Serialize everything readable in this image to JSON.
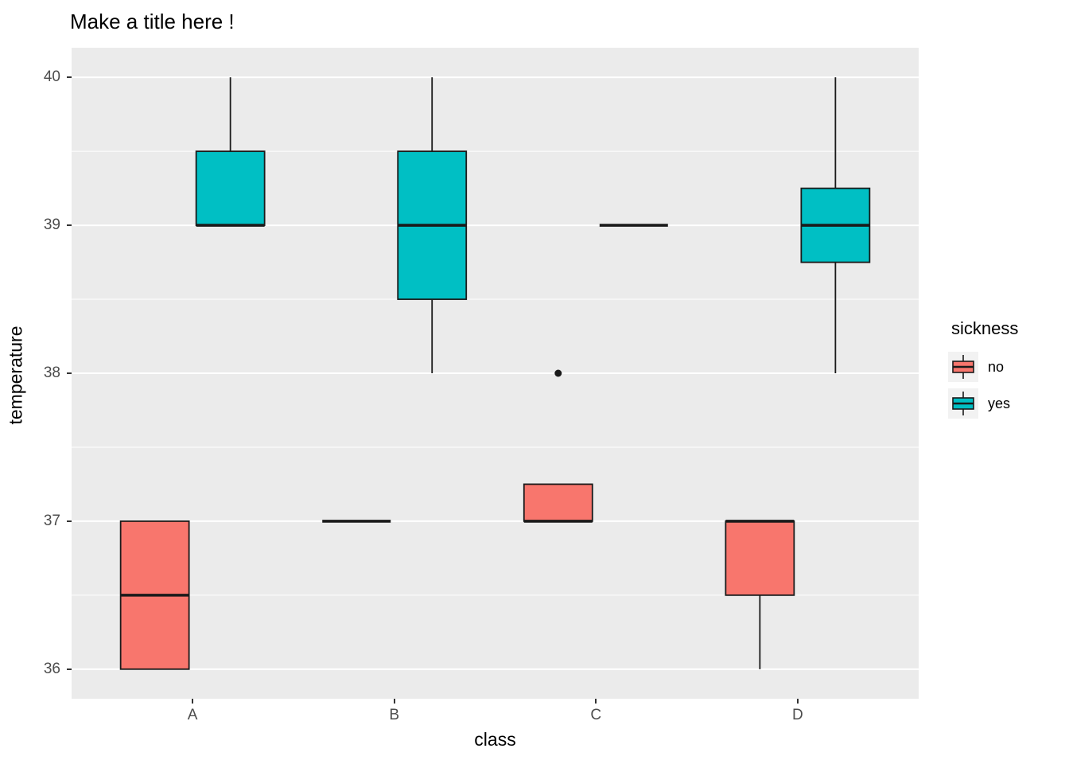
{
  "title": "Make a title here !",
  "axes": {
    "x_label": "class",
    "y_label": "temperature",
    "x_ticks": [
      "A",
      "B",
      "C",
      "D"
    ],
    "y_ticks": [
      "36",
      "37",
      "38",
      "39",
      "40"
    ]
  },
  "legend": {
    "title": "sickness",
    "entries": [
      {
        "label": "no",
        "color": "#F8766D"
      },
      {
        "label": "yes",
        "color": "#00BFC4"
      }
    ]
  },
  "colors": {
    "panel_background": "#EBEBEB",
    "gridline": "#FFFFFF",
    "box_outline": "#1A1A1A",
    "tick_text": "#4D4D4D",
    "fill_no": "#F8766D",
    "fill_yes": "#00BFC4"
  },
  "chart_data": {
    "type": "boxplot",
    "title": "Make a title here !",
    "xlabel": "class",
    "ylabel": "temperature",
    "categories": [
      "A",
      "B",
      "C",
      "D"
    ],
    "ylim": [
      35.8,
      40.2
    ],
    "y_major_ticks": [
      36,
      37,
      38,
      39,
      40
    ],
    "grid": true,
    "legend_position": "right",
    "legend_title": "sickness",
    "series": [
      {
        "name": "no",
        "color": "#F8766D",
        "boxes": [
          {
            "category": "A",
            "min": 36,
            "q1": 36,
            "median": 36.5,
            "q3": 37,
            "max": 37,
            "outliers": []
          },
          {
            "category": "B",
            "min": 37,
            "q1": 37,
            "median": 37,
            "q3": 37,
            "max": 37,
            "outliers": []
          },
          {
            "category": "C",
            "min": 37,
            "q1": 37,
            "median": 37,
            "q3": 37.25,
            "max": 37.25,
            "outliers": [
              38
            ]
          },
          {
            "category": "D",
            "min": 36,
            "q1": 36.5,
            "median": 37,
            "q3": 37,
            "max": 37,
            "outliers": []
          }
        ]
      },
      {
        "name": "yes",
        "color": "#00BFC4",
        "boxes": [
          {
            "category": "A",
            "min": 39,
            "q1": 39,
            "median": 39,
            "q3": 39.5,
            "max": 40,
            "outliers": []
          },
          {
            "category": "B",
            "min": 38,
            "q1": 38.5,
            "median": 39,
            "q3": 39.5,
            "max": 40,
            "outliers": []
          },
          {
            "category": "C",
            "min": 39,
            "q1": 39,
            "median": 39,
            "q3": 39,
            "max": 39,
            "outliers": []
          },
          {
            "category": "D",
            "min": 38,
            "q1": 38.75,
            "median": 39,
            "q3": 39.25,
            "max": 40,
            "outliers": []
          }
        ]
      }
    ]
  }
}
